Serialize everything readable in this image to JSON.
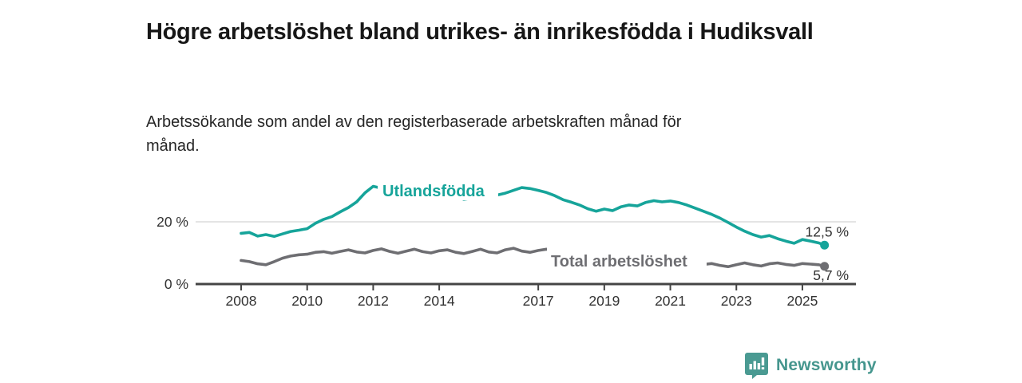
{
  "header": {
    "title": "Högre arbetslöshet bland utrikes- än inrikesfödda i Hudiksvall",
    "subtitle": "Arbetssökande som andel av den registerbaserade arbetskraften månad för månad."
  },
  "chart_data": {
    "type": "line",
    "title": "Högre arbetslöshet bland utrikes- än inrikesfödda i Hudiksvall",
    "subtitle": "Arbetssökande som andel av den registerbaserade arbetskraften månad för månad.",
    "x_axis": {
      "tick_labels": [
        "2008",
        "2010",
        "2012",
        "2014",
        "2017",
        "2019",
        "2021",
        "2023",
        "2025"
      ],
      "tick_years": [
        2008,
        2010,
        2012,
        2014,
        2017,
        2019,
        2021,
        2023,
        2025
      ],
      "range": [
        2006.6,
        2026.6
      ]
    },
    "y_axis": {
      "ticks": [
        {
          "value": 0,
          "label": "0 %"
        },
        {
          "value": 20,
          "label": "20 %"
        }
      ],
      "grid_values": [
        20
      ],
      "range": [
        0,
        35
      ],
      "unit": "%"
    },
    "legend_position": "inline-on-line",
    "grid": "horizontal-only",
    "series": [
      {
        "name": "Utlandsfödda",
        "color": "#16a49a",
        "end_label": "12,5 %",
        "end_value": 12.5,
        "points": [
          [
            2008.0,
            16.3
          ],
          [
            2008.25,
            16.6
          ],
          [
            2008.5,
            15.4
          ],
          [
            2008.75,
            15.9
          ],
          [
            2009.0,
            15.3
          ],
          [
            2009.25,
            16.1
          ],
          [
            2009.5,
            16.9
          ],
          [
            2009.75,
            17.3
          ],
          [
            2010.0,
            17.8
          ],
          [
            2010.25,
            19.5
          ],
          [
            2010.5,
            20.8
          ],
          [
            2010.75,
            21.7
          ],
          [
            2011.0,
            23.2
          ],
          [
            2011.25,
            24.6
          ],
          [
            2011.5,
            26.4
          ],
          [
            2011.75,
            29.3
          ],
          [
            2012.0,
            31.4
          ],
          [
            2012.25,
            30.8
          ],
          [
            2012.5,
            30.0
          ],
          [
            2012.75,
            29.2
          ],
          [
            2013.0,
            28.6
          ],
          [
            2013.25,
            29.4
          ],
          [
            2013.5,
            28.2
          ],
          [
            2013.75,
            27.6
          ],
          [
            2014.0,
            28.1
          ],
          [
            2014.25,
            29.0
          ],
          [
            2014.5,
            28.2
          ],
          [
            2014.75,
            27.2
          ],
          [
            2015.0,
            27.6
          ],
          [
            2015.25,
            28.4
          ],
          [
            2015.5,
            27.7
          ],
          [
            2015.75,
            28.6
          ],
          [
            2016.0,
            29.2
          ],
          [
            2016.25,
            30.1
          ],
          [
            2016.5,
            31.0
          ],
          [
            2016.75,
            30.7
          ],
          [
            2017.0,
            30.1
          ],
          [
            2017.25,
            29.4
          ],
          [
            2017.5,
            28.4
          ],
          [
            2017.75,
            27.1
          ],
          [
            2018.0,
            26.3
          ],
          [
            2018.25,
            25.4
          ],
          [
            2018.5,
            24.2
          ],
          [
            2018.75,
            23.4
          ],
          [
            2019.0,
            24.1
          ],
          [
            2019.25,
            23.6
          ],
          [
            2019.5,
            24.8
          ],
          [
            2019.75,
            25.4
          ],
          [
            2020.0,
            25.1
          ],
          [
            2020.25,
            26.2
          ],
          [
            2020.5,
            26.8
          ],
          [
            2020.75,
            26.4
          ],
          [
            2021.0,
            26.7
          ],
          [
            2021.25,
            26.2
          ],
          [
            2021.5,
            25.4
          ],
          [
            2021.75,
            24.4
          ],
          [
            2022.0,
            23.4
          ],
          [
            2022.25,
            22.4
          ],
          [
            2022.5,
            21.2
          ],
          [
            2022.75,
            19.8
          ],
          [
            2023.0,
            18.3
          ],
          [
            2023.25,
            17.0
          ],
          [
            2023.5,
            15.9
          ],
          [
            2023.75,
            15.1
          ],
          [
            2024.0,
            15.6
          ],
          [
            2024.25,
            14.6
          ],
          [
            2024.5,
            13.8
          ],
          [
            2024.75,
            13.1
          ],
          [
            2025.0,
            14.3
          ],
          [
            2025.25,
            13.8
          ],
          [
            2025.5,
            13.2
          ],
          [
            2025.67,
            12.5
          ]
        ]
      },
      {
        "name": "Total arbetslöshet",
        "color": "#6e6e72",
        "end_label": "5,7 %",
        "end_value": 5.7,
        "points": [
          [
            2008.0,
            7.6
          ],
          [
            2008.25,
            7.2
          ],
          [
            2008.5,
            6.5
          ],
          [
            2008.75,
            6.2
          ],
          [
            2009.0,
            7.2
          ],
          [
            2009.25,
            8.3
          ],
          [
            2009.5,
            9.0
          ],
          [
            2009.75,
            9.4
          ],
          [
            2010.0,
            9.6
          ],
          [
            2010.25,
            10.2
          ],
          [
            2010.5,
            10.4
          ],
          [
            2010.75,
            9.9
          ],
          [
            2011.0,
            10.5
          ],
          [
            2011.25,
            11.0
          ],
          [
            2011.5,
            10.3
          ],
          [
            2011.75,
            10.0
          ],
          [
            2012.0,
            10.8
          ],
          [
            2012.25,
            11.3
          ],
          [
            2012.5,
            10.5
          ],
          [
            2012.75,
            9.9
          ],
          [
            2013.0,
            10.6
          ],
          [
            2013.25,
            11.2
          ],
          [
            2013.5,
            10.4
          ],
          [
            2013.75,
            10.0
          ],
          [
            2014.0,
            10.7
          ],
          [
            2014.25,
            11.0
          ],
          [
            2014.5,
            10.2
          ],
          [
            2014.75,
            9.8
          ],
          [
            2015.0,
            10.5
          ],
          [
            2015.25,
            11.2
          ],
          [
            2015.5,
            10.3
          ],
          [
            2015.75,
            10.0
          ],
          [
            2016.0,
            11.0
          ],
          [
            2016.25,
            11.5
          ],
          [
            2016.5,
            10.6
          ],
          [
            2016.75,
            10.2
          ],
          [
            2017.0,
            10.8
          ],
          [
            2017.25,
            11.2
          ],
          [
            2017.5,
            10.4
          ],
          [
            2017.75,
            10.0
          ],
          [
            2018.0,
            9.8
          ],
          [
            2018.25,
            9.5
          ],
          [
            2018.5,
            9.0
          ],
          [
            2018.75,
            8.8
          ],
          [
            2019.0,
            9.0
          ],
          [
            2019.25,
            8.8
          ],
          [
            2019.5,
            8.5
          ],
          [
            2019.75,
            8.7
          ],
          [
            2020.0,
            9.0
          ],
          [
            2020.25,
            9.8
          ],
          [
            2020.5,
            9.5
          ],
          [
            2020.75,
            9.0
          ],
          [
            2021.0,
            8.8
          ],
          [
            2021.25,
            8.3
          ],
          [
            2021.5,
            7.4
          ],
          [
            2021.75,
            6.5
          ],
          [
            2022.0,
            6.3
          ],
          [
            2022.25,
            6.6
          ],
          [
            2022.5,
            6.0
          ],
          [
            2022.75,
            5.6
          ],
          [
            2023.0,
            6.2
          ],
          [
            2023.25,
            6.8
          ],
          [
            2023.5,
            6.2
          ],
          [
            2023.75,
            5.8
          ],
          [
            2024.0,
            6.5
          ],
          [
            2024.25,
            6.8
          ],
          [
            2024.5,
            6.3
          ],
          [
            2024.75,
            6.0
          ],
          [
            2025.0,
            6.6
          ],
          [
            2025.25,
            6.4
          ],
          [
            2025.5,
            6.2
          ],
          [
            2025.67,
            5.7
          ]
        ]
      }
    ]
  },
  "branding": {
    "name": "Newsworthy",
    "color": "#45968e"
  },
  "colors": {
    "background": "#ffffff",
    "title_text": "#171717",
    "subtitle_text": "#262626",
    "axis": "#444444",
    "tick_text": "#333333",
    "gridline": "#dcdcdc",
    "series_foreign_born": "#16a49a",
    "series_total": "#6e6e72"
  }
}
